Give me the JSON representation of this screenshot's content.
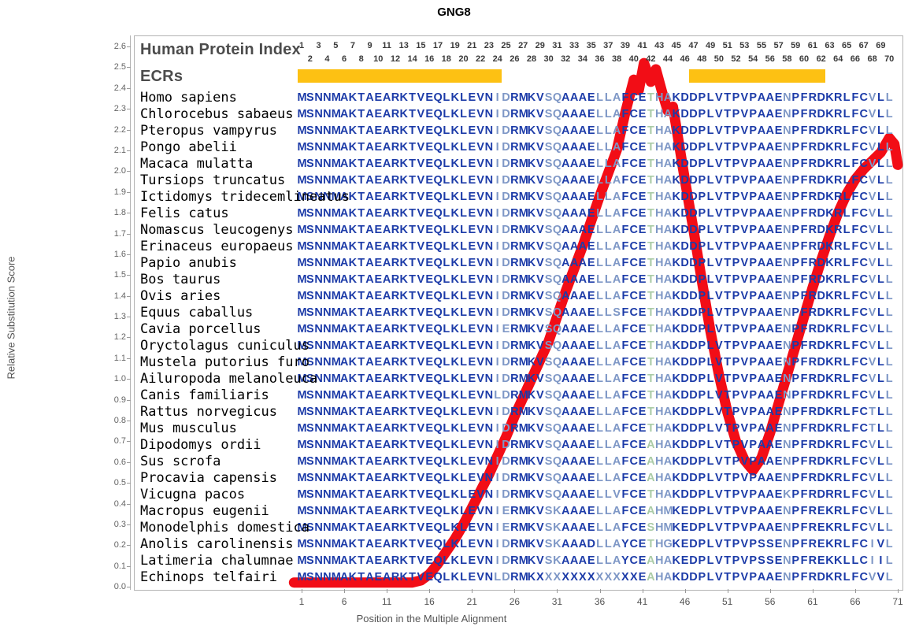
{
  "title": "GNG8",
  "y_axis": {
    "label": "Relative Substitution Score",
    "ticks": [
      "0.0",
      "0.1",
      "0.2",
      "0.3",
      "0.4",
      "0.5",
      "0.6",
      "0.7",
      "0.8",
      "0.9",
      "1.0",
      "1.1",
      "1.2",
      "1.3",
      "1.4",
      "1.5",
      "1.6",
      "1.7",
      "1.8",
      "1.9",
      "2.0",
      "2.1",
      "2.2",
      "2.3",
      "2.4",
      "2.5",
      "2.6"
    ]
  },
  "x_axis": {
    "label": "Position in the Multiple Alignment",
    "ticks": [
      1,
      6,
      11,
      16,
      21,
      26,
      31,
      36,
      41,
      46,
      51,
      56,
      61,
      66,
      71
    ]
  },
  "panel": {
    "human_protein_index_label": "Human Protein Index",
    "ecrs_label": "ECRs"
  },
  "ruler": {
    "positions": [
      1,
      2,
      3,
      4,
      5,
      6,
      7,
      8,
      9,
      10,
      11,
      12,
      13,
      14,
      15,
      16,
      17,
      18,
      19,
      20,
      21,
      22,
      23,
      24,
      25,
      26,
      27,
      28,
      29,
      30,
      31,
      32,
      33,
      34,
      35,
      36,
      37,
      38,
      39,
      40,
      41,
      42,
      43,
      44,
      45,
      46,
      47,
      48,
      49,
      50,
      51,
      52,
      53,
      54,
      55,
      56,
      57,
      58,
      59,
      60,
      61,
      62,
      63,
      64,
      65,
      66,
      67,
      68,
      69,
      70
    ]
  },
  "ecr_bars": [
    {
      "from": 1,
      "to": 24
    },
    {
      "from": 47,
      "to": 62
    }
  ],
  "colors": {
    "residue_dark": "#1c3ba8",
    "residue_slate": "#7e97c6",
    "residue_green": "#aacba6",
    "curve_red": "#f20d16",
    "ecr_orange": "#fdc113",
    "panel_gray": "#4c4c4c",
    "axis_gray": "#666666",
    "border_gray": "#b3b3b3"
  },
  "column_styles": "dddddddddddddddddddddddllddddlলlddddllldddgllddddddddddddduddddddddddldl",
  "column_styles_fixed": "dddddddddddddddddddddddlldddd ll dddd lll ddd g ll ddddddddddddd l ddddddddd l d l",
  "columns": "ddddddddddddddddddddddd ll dddd ll dddd lll ddd g ll ddddddddddddd l ddddddddd l d l",
  "species": [
    {
      "name": "Homo sapiens",
      "seq": "MSNNMAKTAEARKTVEQLKLEVNIDRMKVSQAAAELLAFCETHAKDDPLVTPVPAAENPFRDKRLFCVLL"
    },
    {
      "name": "Chlorocebus sabaeus",
      "seq": "MSNNMAKTAEARKTVEQLKLEVNIDRMKVSQAAAELLAFCETHAKDDPLVTPVPAAENPFRDKRLFCVLL"
    },
    {
      "name": "Pteropus vampyrus",
      "seq": "MSNNMAKTAEARKTVEQLKLEVNIDRMKVSQAAAELLAFCETHAKDDPLVTPVPAAENPFRDKRLFCVLL"
    },
    {
      "name": "Pongo abelii",
      "seq": "MSNNMAKTAEARKTVEQLKLEVNIDRMKVSQAAAELLAFCETHAKDDPLVTPVPAAENPFRDKRLFCVLL"
    },
    {
      "name": "Macaca mulatta",
      "seq": "MSNNMAKTAEARKTVEQLKLEVNIDRMKVSQAAAELLAFCETHAKDDPLVTPVPAAENPFRDKRLFCVLL"
    },
    {
      "name": "Tursiops truncatus",
      "seq": "MSNNMAKTAEARKTVEQLKLEVNIDRMKVSQAAAELLAFCETHAKDDPLVTPVPAAENPFRDKRLFCVLL"
    },
    {
      "name": "Ictidomys tridecemlineatus",
      "seq": "MSNNMAKTAEARKTVEQLKLEVNIDRMKVSQAAAELLAFCETHAKDDPLVTPVPAAENPFRDKRLFCVLL"
    },
    {
      "name": "Felis catus",
      "seq": "MSNNMAKTAEARKTVEQLKLEVNIDRMKVSQAAAELLAFCETHAKDDPLVTPVPAAENPFRDKRLFCVLL"
    },
    {
      "name": "Nomascus leucogenys",
      "seq": "MSNNMAKTAEARKTVEQLKLEVNIDRMKVSQAAAELLAFCETHAKDDPLVTPVPAAENPFRDKRLFCVLL"
    },
    {
      "name": "Erinaceus europaeus",
      "seq": "MSNNMAKTAEARKTVEQLKLEVNIDRMKVSQAAAELLAFCETHAKDDPLVTPVPAAENPFRDKRLFCVLL"
    },
    {
      "name": "Papio anubis",
      "seq": "MSNNMAKTAEARKTVEQLKLEVNIDRMKVSQAAAELLAFCETHAKDDPLVTPVPAAENPFRDKRLFCVLL"
    },
    {
      "name": "Bos taurus",
      "seq": "MSNNMAKTAEARKTVEQLKLEVNIDRMKVSQAAAELLAFCETHAKDDPLVTPVPAAENPFRDKRLFCVLL"
    },
    {
      "name": "Ovis aries",
      "seq": "MSNNMAKTAEARKTVEQLKLEVNIDRMKVSQAAAELLAFCETHAKDDPLVTPVPAAENPFRDKRLFCVLL"
    },
    {
      "name": "Equus caballus",
      "seq": "MSNNMAKTAEARKTVEQLKLEVNIDRMKVSQAAAELLSFCETHAKDDPLVTPVPAAENPFRDKRLFCVLL"
    },
    {
      "name": "Cavia porcellus",
      "seq": "MSNNMAKTAEARKTVEQLKLEVNIERMKVSQAAAELLAFCETHAKDDPLVTPVPAAENPFRDKRLFCVLL"
    },
    {
      "name": "Oryctolagus cuniculus",
      "seq": "MSNNMAKTAEARKTVEQLKLEVNIDRMKVSQAAAELLAFCETHAKDDPLVTPVPAAENPFRDKRLFCVLL"
    },
    {
      "name": "Mustela putorius furo",
      "seq": "MSNNMAKTAEARKTVEQLKLEVNIDRMKVSQAAAELLAFCETHAKDDPLVTPVPAAENPFRDKRLFCVLL"
    },
    {
      "name": "Ailuropoda melanoleuca",
      "seq": "MSNNMAKTAEARKTVEQLKLEVNIDRMKVSQAAAELLAFCETHAKDDPLVTPVPAAENPFRDKRLFCVLL"
    },
    {
      "name": "Canis familiaris",
      "seq": "MSNNMAKTAEARKTVEQLKLEVNLDRMKVSQAAAELLAFCETHAKDDPLVTPVPAAENPFRDKRLFCVLL"
    },
    {
      "name": "Rattus norvegicus",
      "seq": "MSNNMAKTAEARKTVEQLKLEVNIDRMKVSQAAAELLAFCETHAKDDPLVTPVPAAENPFRDKRLFCTLL"
    },
    {
      "name": "Mus musculus",
      "seq": "MSNNMAKTAEARKTVEQLKLEVNIDRMKVSQAAAELLAFCETHAKDDPLVTPVPAAENPFRDKRLFCTLL"
    },
    {
      "name": "Dipodomys ordii",
      "seq": "MSNNMAKTAEARKTVEQLKLEVNIDRMKVSQAAAELLAFCEAHAKDDPLVTPVPAAENPFRDKRLFCVLL"
    },
    {
      "name": "Sus scrofa",
      "seq": "MSNNMAKTAEARKTVEQLKLEVNIDRMKVSQAAAELLAFCEAHAKDDPLVTPVPAAENPFRDKRLFCVLL"
    },
    {
      "name": "Procavia capensis",
      "seq": "MSNNMAKTAEARKTVEQLKLEVNIDRMKVSQAAAELLAFCEAHAKDDPLVTPVPAAENPFRDKRLFCVLL"
    },
    {
      "name": "Vicugna pacos",
      "seq": "MSNNMAKTAEARKTVEQLKLEVNIDRMKVSQAAAELLVFCETHAKDDPLVTPVPAAEKPFRDRRLFCVLL"
    },
    {
      "name": "Macropus eugenii",
      "seq": "MSNNMAKTAEARKTVEQLKLEVNIERMKVSKAAAELLAFCEAHMKEDPLVTPVPAAENPFREKRLFCVLL"
    },
    {
      "name": "Monodelphis domestica",
      "seq": "MSNNMAKTAEARKTVEQLKLEVNIERMKVSKAAAELLAFCESHMKEDPLVTPVPAAENPFREKRLFCVLL"
    },
    {
      "name": "Anolis carolinensis",
      "seq": "MSNNMAKTAEARKTVEQLKLEVNIDRMKVSKAAADLLAYCETHGKEDPLVTPVPSSENPFREKRLFCIVL"
    },
    {
      "name": "Latimeria chalumnae",
      "seq": "MSNNMAKTAEARKTVEQLKLEVNIDRMKVSKAAAELLAYCEAHAKEDPLVTPVPSSENPFREKKLLCIIL"
    },
    {
      "name": "Echinops telfairi",
      "seq": "MSNNMAKTAEARKTVEQLKLEVNLDRMKXXXXXXXXXXXXEAHAKDDPLVTPVPAAENPFRDKRLFCVVL"
    }
  ],
  "chart_data": {
    "type": "line",
    "title": "GNG8",
    "xlabel": "Position in the Multiple Alignment",
    "ylabel": "Relative Substitution Score",
    "xlim": [
      1,
      71
    ],
    "ylim": [
      0.0,
      2.6
    ],
    "x_ticks": [
      1,
      6,
      11,
      16,
      21,
      26,
      31,
      36,
      41,
      46,
      51,
      56,
      61,
      66,
      71
    ],
    "y_tick_step": 0.1,
    "grid": false,
    "legend_position": "none",
    "ecr_blocks_alignment_columns": [
      [
        1,
        24
      ],
      [
        47,
        62
      ]
    ],
    "series": [
      {
        "name": "Relative Substitution Score",
        "points": [
          [
            0.1,
            0.02
          ],
          [
            5,
            0.02
          ],
          [
            10,
            0.02
          ],
          [
            14,
            0.02
          ],
          [
            15,
            0.03
          ],
          [
            16,
            0.06
          ],
          [
            17,
            0.11
          ],
          [
            18,
            0.17
          ],
          [
            19,
            0.23
          ],
          [
            20,
            0.3
          ],
          [
            21,
            0.38
          ],
          [
            22,
            0.46
          ],
          [
            23,
            0.54
          ],
          [
            24,
            0.63
          ],
          [
            25,
            0.72
          ],
          [
            26,
            0.82
          ],
          [
            27,
            0.91
          ],
          [
            28,
            1.0
          ],
          [
            29,
            1.09
          ],
          [
            30,
            1.18
          ],
          [
            31,
            1.3
          ],
          [
            32,
            1.42
          ],
          [
            33,
            1.53
          ],
          [
            34,
            1.64
          ],
          [
            35,
            1.76
          ],
          [
            36,
            1.88
          ],
          [
            37,
            1.99
          ],
          [
            38,
            2.1
          ],
          [
            39,
            2.28
          ],
          [
            40,
            2.44
          ],
          [
            40.6,
            2.39
          ],
          [
            41.2,
            2.52
          ],
          [
            42,
            2.43
          ],
          [
            42.6,
            2.49
          ],
          [
            43.4,
            2.37
          ],
          [
            44,
            2.29
          ],
          [
            44.6,
            2.31
          ],
          [
            45.2,
            2.16
          ],
          [
            46,
            1.96
          ],
          [
            47,
            1.72
          ],
          [
            48,
            1.47
          ],
          [
            49,
            1.23
          ],
          [
            50,
            1.02
          ],
          [
            51,
            0.84
          ],
          [
            52,
            0.7
          ],
          [
            53,
            0.61
          ],
          [
            54,
            0.56
          ],
          [
            55,
            0.62
          ],
          [
            56,
            0.74
          ],
          [
            57,
            0.88
          ],
          [
            58,
            1.02
          ],
          [
            59,
            1.16
          ],
          [
            60,
            1.3
          ],
          [
            61,
            1.44
          ],
          [
            62,
            1.57
          ],
          [
            63,
            1.69
          ],
          [
            64,
            1.8
          ],
          [
            65,
            1.89
          ],
          [
            66,
            1.96
          ],
          [
            67,
            2.01
          ],
          [
            68,
            2.05
          ],
          [
            69,
            2.09
          ],
          [
            70,
            2.16
          ],
          [
            70.6,
            2.13
          ],
          [
            71,
            2.03
          ]
        ]
      }
    ]
  }
}
